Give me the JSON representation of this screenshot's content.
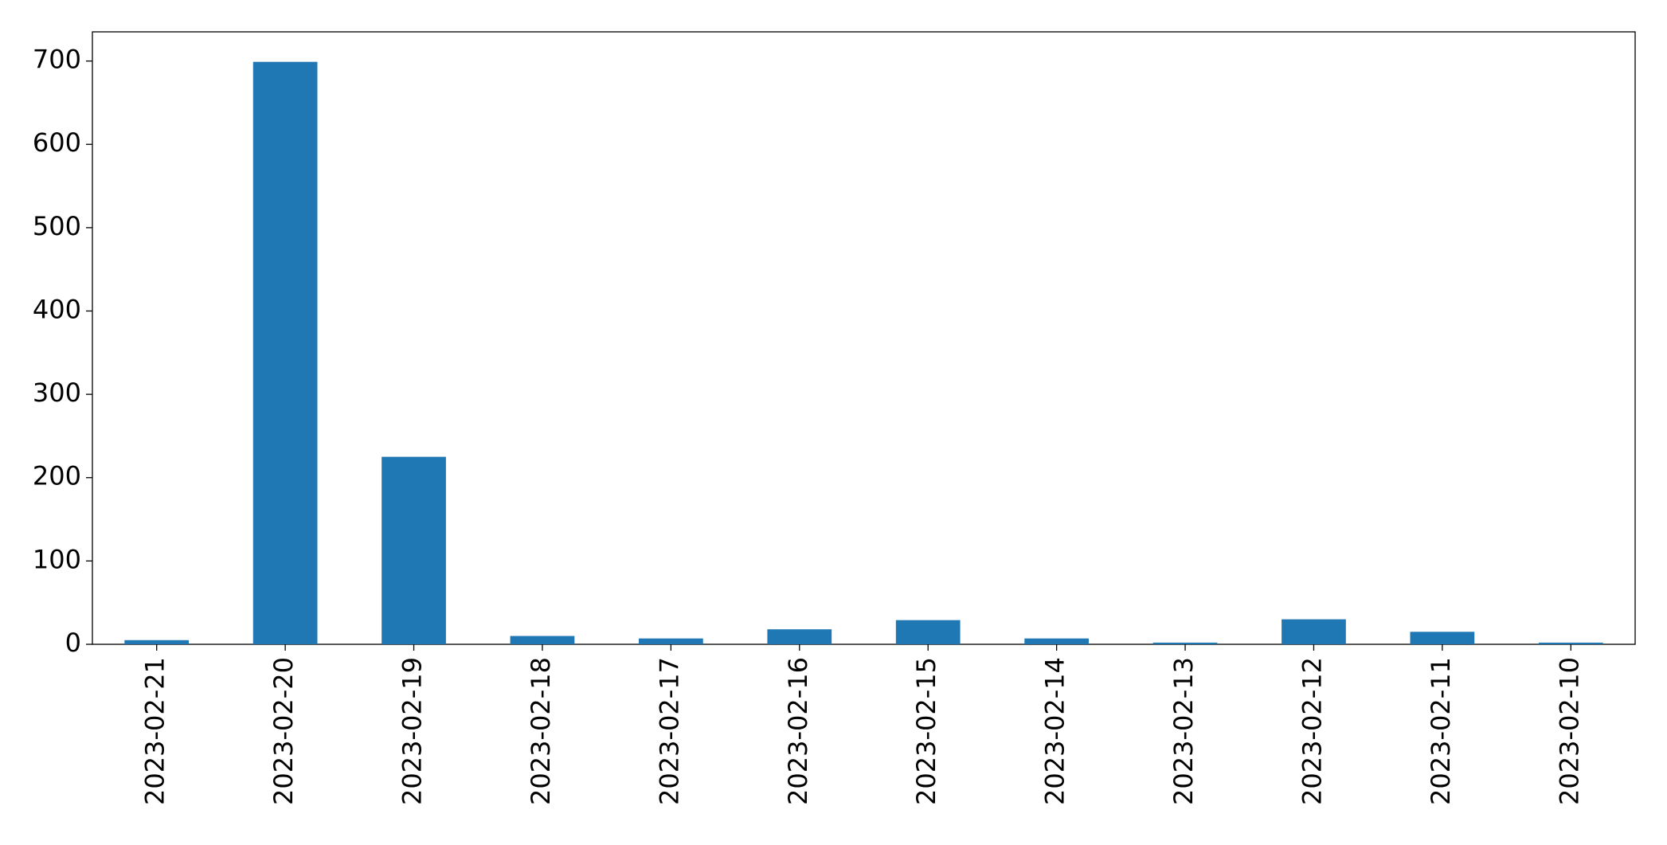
{
  "chart_data": {
    "type": "bar",
    "categories": [
      "2023-02-21",
      "2023-02-20",
      "2023-02-19",
      "2023-02-18",
      "2023-02-17",
      "2023-02-16",
      "2023-02-15",
      "2023-02-14",
      "2023-02-13",
      "2023-02-12",
      "2023-02-11",
      "2023-02-10"
    ],
    "values": [
      5,
      699,
      225,
      10,
      7,
      18,
      29,
      7,
      2,
      30,
      15,
      2
    ],
    "color": "#1f77b4",
    "ylim": [
      0,
      735
    ],
    "yticks": [
      0,
      100,
      200,
      300,
      400,
      500,
      600,
      700
    ],
    "grid": false
  }
}
